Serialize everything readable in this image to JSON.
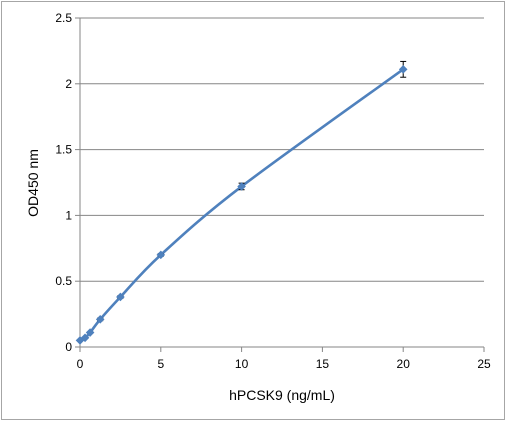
{
  "chart_data": {
    "type": "scatter",
    "title": "",
    "xlabel": "hPCSK9 (ng/mL)",
    "ylabel": "OD450 nm",
    "xlim": [
      0,
      25
    ],
    "ylim": [
      0,
      2.5
    ],
    "xticks": [
      0,
      5,
      10,
      15,
      20,
      25
    ],
    "yticks": [
      0,
      0.5,
      1,
      1.5,
      2,
      2.5
    ],
    "xtick_labels": [
      "0",
      "5",
      "10",
      "15",
      "20",
      "25"
    ],
    "ytick_labels": [
      "0",
      "0.5",
      "1",
      "1.5",
      "2",
      "2.5"
    ],
    "grid": "horizontal",
    "legend": "none",
    "line_color": "#4f81bd",
    "marker": "diamond",
    "series": [
      {
        "points": [
          {
            "x": 0,
            "y": 0.05,
            "err": 0.005
          },
          {
            "x": 0.3125,
            "y": 0.07,
            "err": 0.005
          },
          {
            "x": 0.625,
            "y": 0.11,
            "err": 0.005
          },
          {
            "x": 1.25,
            "y": 0.21,
            "err": 0.01
          },
          {
            "x": 2.5,
            "y": 0.38,
            "err": 0.01
          },
          {
            "x": 5,
            "y": 0.7,
            "err": 0.01
          },
          {
            "x": 10,
            "y": 1.22,
            "err": 0.025
          },
          {
            "x": 20,
            "y": 2.11,
            "err": 0.06
          }
        ]
      }
    ]
  }
}
